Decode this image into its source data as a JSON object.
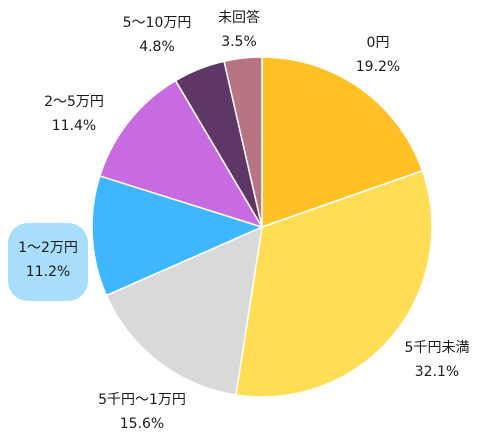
{
  "chart_data": {
    "type": "pie",
    "slices": [
      {
        "label": "0円",
        "pct_text": "19.2%",
        "value": 19.2,
        "color": "#FFC125",
        "label_color": "#1a1a1a",
        "highlight": false
      },
      {
        "label": "5千円未満",
        "pct_text": "32.1%",
        "value": 32.1,
        "color": "#FFDD55",
        "label_color": "#1a1a1a",
        "highlight": false
      },
      {
        "label": "5千円〜1万円",
        "pct_text": "15.6%",
        "value": 15.6,
        "color": "#D9D9D9",
        "label_color": "#1a1a1a",
        "highlight": false
      },
      {
        "label": "1〜2万円",
        "pct_text": "11.2%",
        "value": 11.2,
        "color": "#3FB7FF",
        "label_color": "#17375e",
        "highlight": true,
        "highlight_color": "#A8DDFB"
      },
      {
        "label": "2〜5万円",
        "pct_text": "11.4%",
        "value": 11.4,
        "color": "#C86BE0",
        "label_color": "#1a1a1a",
        "highlight": false
      },
      {
        "label": "5〜10万円",
        "pct_text": "4.8%",
        "value": 4.8,
        "color": "#5E3766",
        "label_color": "#1a1a1a",
        "highlight": false
      },
      {
        "label": "未回答",
        "pct_text": "3.5%",
        "value": 3.5,
        "color": "#B97483",
        "label_color": "#1a1a1a",
        "highlight": false
      }
    ]
  }
}
